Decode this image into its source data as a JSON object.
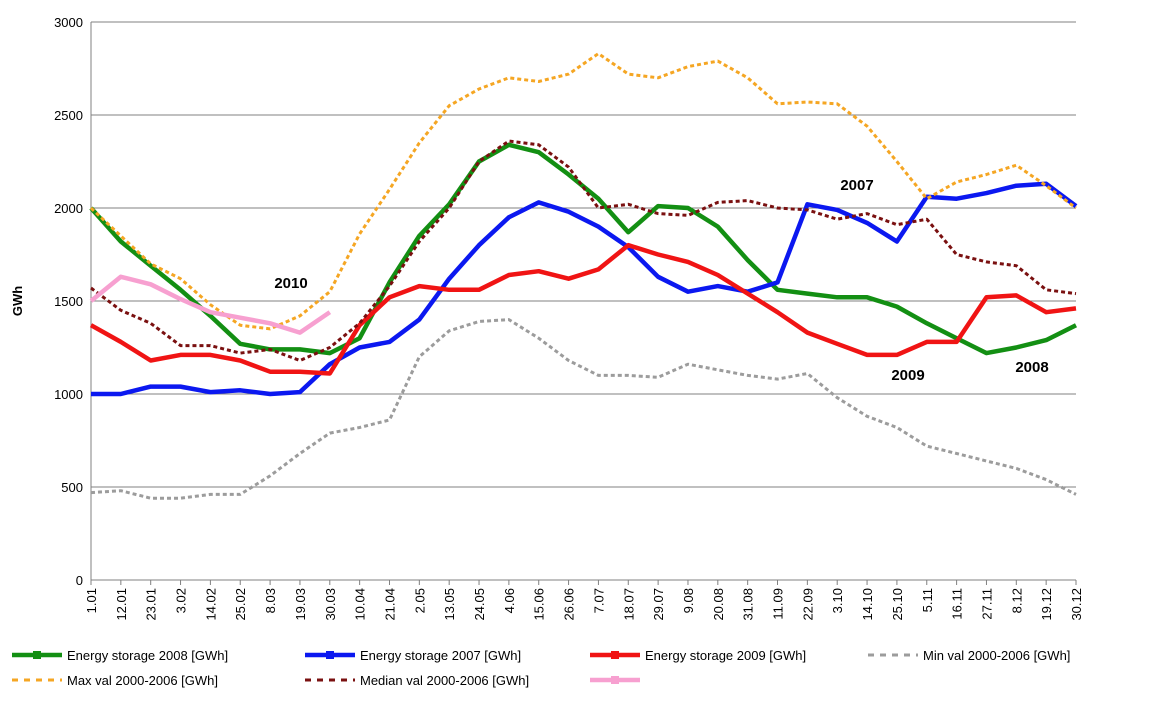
{
  "chart_data": {
    "type": "line",
    "y_label": "GWh",
    "categories": [
      "1.01",
      "12.01",
      "23.01",
      "3.02",
      "14.02",
      "25.02",
      "8.03",
      "19.03",
      "30.03",
      "10.04",
      "21.04",
      "2.05",
      "13.05",
      "24.05",
      "4.06",
      "15.06",
      "26.06",
      "7.07",
      "18.07",
      "29.07",
      "9.08",
      "20.08",
      "31.08",
      "11.09",
      "22.09",
      "3.10",
      "14.10",
      "25.10",
      "5.11",
      "16.11",
      "27.11",
      "8.12",
      "19.12",
      "30.12"
    ],
    "ylim": [
      0,
      3000
    ],
    "yticks": [
      0,
      500,
      1000,
      1500,
      2000,
      2500,
      3000
    ],
    "grid": true,
    "annotations": [
      "2010",
      "2007",
      "2009",
      "2008"
    ],
    "series": [
      {
        "name": "Energy storage 2008 [GWh]",
        "color": "#138f13",
        "style": "solid",
        "values": [
          2000,
          1820,
          1690,
          1560,
          1420,
          1270,
          1240,
          1240,
          1220,
          1300,
          1600,
          1850,
          2020,
          2250,
          2340,
          2300,
          2180,
          2050,
          1870,
          2010,
          2000,
          1900,
          1720,
          1560,
          1540,
          1520,
          1520,
          1470,
          1380,
          1300,
          1220,
          1250,
          1290,
          1370
        ]
      },
      {
        "name": "Energy storage 2007 [GWh]",
        "color": "#0b18f0",
        "style": "solid",
        "values": [
          1000,
          1000,
          1040,
          1040,
          1010,
          1020,
          1000,
          1010,
          1160,
          1250,
          1280,
          1400,
          1620,
          1800,
          1950,
          2030,
          1980,
          1900,
          1790,
          1630,
          1550,
          1580,
          1550,
          1600,
          2020,
          1990,
          1920,
          1820,
          2060,
          2050,
          2080,
          2120,
          2130,
          2010
        ]
      },
      {
        "name": "Energy storage 2009 [GWh]",
        "color": "#f01414",
        "style": "solid",
        "values": [
          1370,
          1280,
          1180,
          1210,
          1210,
          1180,
          1120,
          1120,
          1110,
          1370,
          1520,
          1580,
          1560,
          1560,
          1640,
          1660,
          1620,
          1670,
          1800,
          1750,
          1710,
          1640,
          1540,
          1440,
          1330,
          1270,
          1210,
          1210,
          1280,
          1280,
          1520,
          1530,
          1440,
          1460
        ]
      },
      {
        "name": "Min val 2000-2006 [GWh]",
        "color": "#9c9c9c",
        "style": "dashed",
        "values": [
          470,
          480,
          440,
          440,
          460,
          460,
          560,
          680,
          790,
          820,
          860,
          1200,
          1340,
          1390,
          1400,
          1300,
          1180,
          1100,
          1100,
          1090,
          1160,
          1130,
          1100,
          1080,
          1110,
          980,
          880,
          820,
          720,
          680,
          640,
          600,
          540,
          460
        ]
      },
      {
        "name": "Max val 2000-2006 [GWh]",
        "color": "#f5a623",
        "style": "dashed",
        "values": [
          2000,
          1850,
          1700,
          1620,
          1480,
          1370,
          1350,
          1420,
          1550,
          1860,
          2100,
          2350,
          2550,
          2640,
          2700,
          2680,
          2720,
          2830,
          2720,
          2700,
          2760,
          2790,
          2700,
          2560,
          2570,
          2560,
          2440,
          2250,
          2050,
          2140,
          2180,
          2230,
          2120,
          2000
        ]
      },
      {
        "name": "Median val 2000-2006 [GWh]",
        "color": "#7a1010",
        "style": "dashed",
        "values": [
          1570,
          1450,
          1380,
          1260,
          1260,
          1220,
          1240,
          1180,
          1250,
          1380,
          1580,
          1820,
          2000,
          2250,
          2360,
          2340,
          2220,
          2000,
          2020,
          1970,
          1960,
          2030,
          2040,
          2000,
          1990,
          1940,
          1970,
          1910,
          1940,
          1750,
          1710,
          1690,
          1560,
          1540
        ]
      },
      {
        "color": "#f7a0d0",
        "style": "solid",
        "values": [
          1500,
          1630,
          1590,
          1510,
          1440,
          1410,
          1380,
          1330,
          1440,
          null,
          null,
          null,
          null,
          null,
          null,
          null,
          null,
          null,
          null,
          null,
          null,
          null,
          null,
          null,
          null,
          null,
          null,
          null,
          null,
          null,
          null,
          null,
          null,
          null
        ]
      }
    ]
  }
}
